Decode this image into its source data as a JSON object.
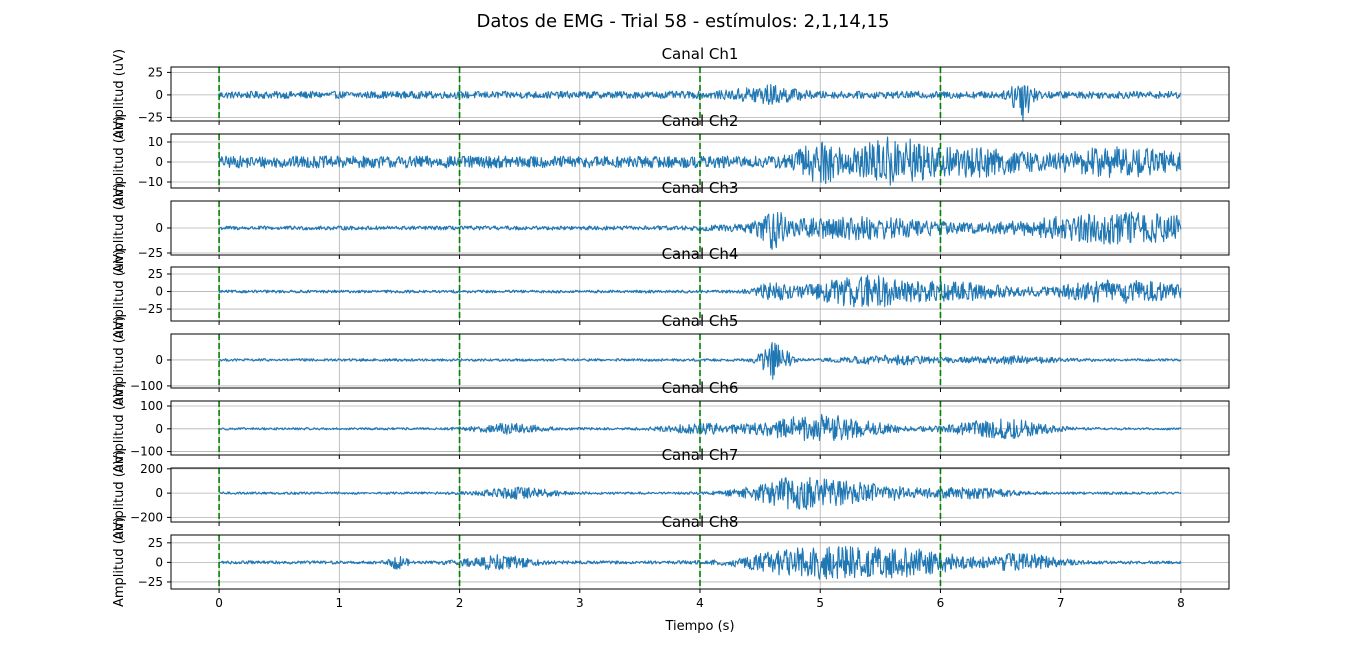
{
  "figure": {
    "title": "Datos de EMG - Trial 58 - estímulos: 2,1,14,15",
    "xlabel": "Tiempo (s)",
    "ylabel": "Amplitud (uV)"
  },
  "colors": {
    "signal": "#1f77b4",
    "stimulus": "#008000",
    "grid": "#b0b0b0"
  },
  "chart_data": {
    "type": "line",
    "x_range": [
      0,
      8
    ],
    "xlim": [
      -0.4,
      8.4
    ],
    "x_ticks": [
      0,
      1,
      2,
      3,
      4,
      5,
      6,
      7,
      8
    ],
    "stimulus_times": [
      0,
      2,
      4,
      6
    ],
    "grid": true,
    "series": [
      {
        "name": "Canal Ch1",
        "ylim": [
          -29,
          31
        ],
        "y_ticks": [
          -25,
          0,
          25
        ],
        "y_tick_labels": [
          "−25",
          "0",
          "25"
        ],
        "base": 4,
        "bursts": [
          [
            4.55,
            0.25,
            8
          ],
          [
            6.68,
            0.08,
            26
          ]
        ]
      },
      {
        "name": "Canal Ch2",
        "ylim": [
          -13,
          14
        ],
        "y_ticks": [
          -10,
          0,
          10
        ],
        "y_tick_labels": [
          "−10",
          "0",
          "10"
        ],
        "base": 3,
        "bursts": [
          [
            5.0,
            0.2,
            8
          ],
          [
            5.6,
            0.3,
            10
          ],
          [
            6.3,
            0.4,
            5
          ],
          [
            7.5,
            0.5,
            5
          ]
        ]
      },
      {
        "name": "Canal Ch3",
        "ylim": [
          -27,
          27
        ],
        "y_ticks": [
          -25,
          0
        ],
        "y_tick_labels": [
          "−25",
          "0"
        ],
        "base": 2,
        "bursts": [
          [
            4.6,
            0.1,
            15
          ],
          [
            5.3,
            0.8,
            10
          ],
          [
            7.5,
            0.8,
            15
          ]
        ]
      },
      {
        "name": "Canal Ch4",
        "ylim": [
          -42,
          35
        ],
        "y_ticks": [
          -25,
          0,
          25
        ],
        "y_tick_labels": [
          "−25",
          "0",
          "25"
        ],
        "base": 2,
        "bursts": [
          [
            4.6,
            0.15,
            10
          ],
          [
            5.4,
            0.5,
            22
          ],
          [
            6.2,
            0.4,
            10
          ],
          [
            7.5,
            0.6,
            15
          ]
        ]
      },
      {
        "name": "Canal Ch5",
        "ylim": [
          -108,
          100
        ],
        "y_ticks": [
          -100,
          0
        ],
        "y_tick_labels": [
          "−100",
          "0"
        ],
        "base": 5,
        "bursts": [
          [
            4.62,
            0.12,
            70
          ],
          [
            5.6,
            0.4,
            15
          ],
          [
            6.6,
            0.4,
            12
          ]
        ]
      },
      {
        "name": "Canal Ch6",
        "ylim": [
          -115,
          122
        ],
        "y_ticks": [
          -100,
          0,
          100
        ],
        "y_tick_labels": [
          "−100",
          "0",
          "100"
        ],
        "base": 5,
        "bursts": [
          [
            2.4,
            0.3,
            20
          ],
          [
            4.0,
            0.3,
            20
          ],
          [
            5.0,
            0.5,
            60
          ],
          [
            6.5,
            0.4,
            40
          ]
        ]
      },
      {
        "name": "Canal Ch7",
        "ylim": [
          -238,
          207
        ],
        "y_ticks": [
          -200,
          0,
          200
        ],
        "y_tick_labels": [
          "−200",
          "0",
          "200"
        ],
        "base": 10,
        "bursts": [
          [
            2.5,
            0.3,
            40
          ],
          [
            4.8,
            0.4,
            120
          ],
          [
            5.4,
            0.4,
            60
          ],
          [
            6.2,
            0.4,
            40
          ]
        ]
      },
      {
        "name": "Canal Ch8",
        "ylim": [
          -34,
          35
        ],
        "y_ticks": [
          -25,
          0,
          25
        ],
        "y_tick_labels": [
          "−25",
          "0",
          "25"
        ],
        "base": 2,
        "bursts": [
          [
            1.5,
            0.08,
            8
          ],
          [
            2.3,
            0.3,
            8
          ],
          [
            4.9,
            0.5,
            18
          ],
          [
            5.7,
            0.5,
            16
          ],
          [
            6.7,
            0.3,
            10
          ]
        ]
      }
    ]
  }
}
